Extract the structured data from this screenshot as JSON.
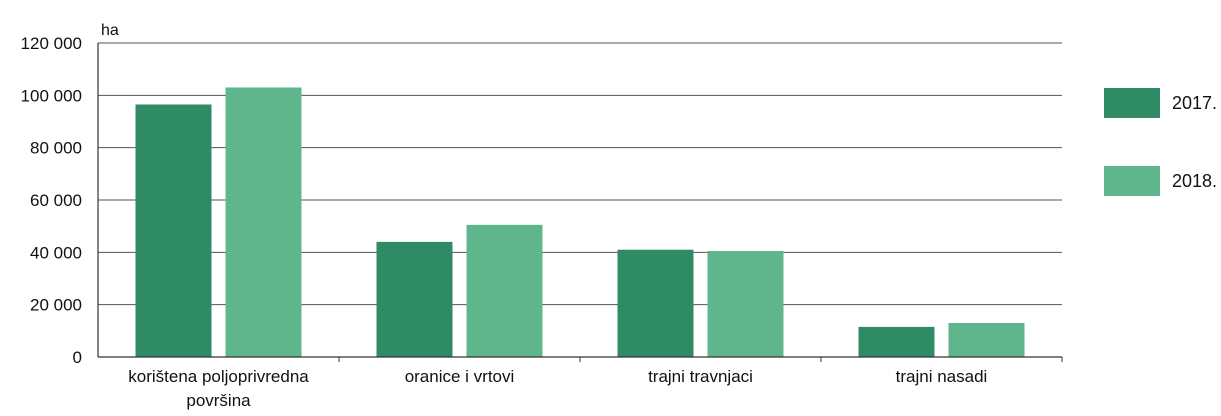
{
  "chart_data": {
    "type": "bar",
    "unit_label": "ha",
    "categories": [
      [
        "korištena poljoprivredna",
        "površina"
      ],
      [
        "oranice i vrtovi"
      ],
      [
        "trajni travnjaci"
      ],
      [
        "trajni nasadi"
      ]
    ],
    "series": [
      {
        "name": "2017.",
        "color": "#2e8b65",
        "values": [
          96500,
          44000,
          41000,
          11500
        ]
      },
      {
        "name": "2018.",
        "color": "#5fb58c",
        "values": [
          103000,
          50500,
          40500,
          13000
        ]
      }
    ],
    "ylim": [
      0,
      120000
    ],
    "yticks": [
      {
        "value": 0,
        "label": "0"
      },
      {
        "value": 20000,
        "label": "20 000"
      },
      {
        "value": 40000,
        "label": "40 000"
      },
      {
        "value": 60000,
        "label": "60 000"
      },
      {
        "value": 80000,
        "label": "80 000"
      },
      {
        "value": 100000,
        "label": "100 000"
      },
      {
        "value": 120000,
        "label": "120 000"
      }
    ],
    "grid": true,
    "legend_position": "right",
    "gridline_color": "#555555"
  }
}
